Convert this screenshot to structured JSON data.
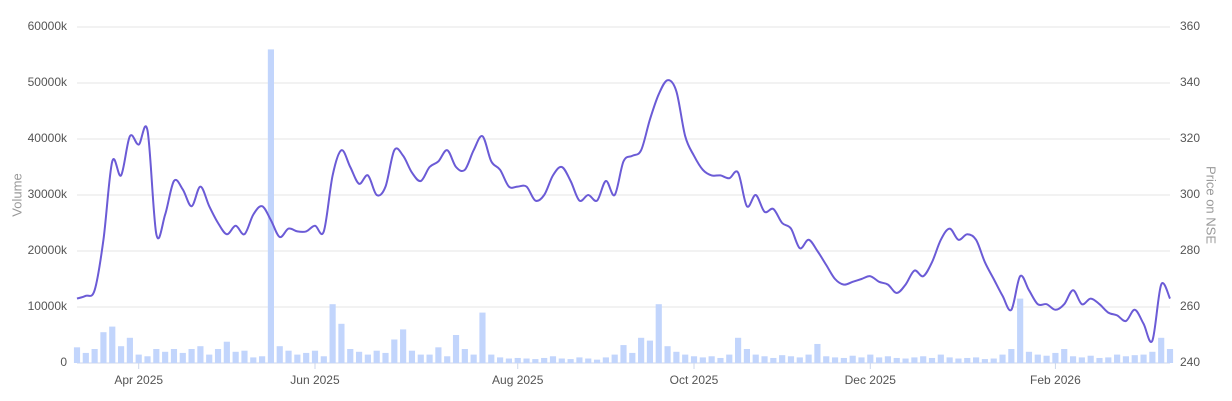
{
  "chart_data": {
    "type": "bar-line",
    "ylabel": "Volume",
    "y2label": "Price on NSE",
    "categories": [
      null,
      null,
      null,
      null,
      null,
      null,
      null,
      "Apr 2025",
      null,
      null,
      null,
      null,
      null,
      null,
      null,
      null,
      null,
      null,
      null,
      null,
      null,
      null,
      null,
      null,
      null,
      null,
      null,
      "Jun 2025",
      null,
      null,
      null,
      null,
      null,
      null,
      null,
      null,
      null,
      null,
      null,
      null,
      null,
      null,
      null,
      null,
      null,
      null,
      null,
      null,
      null,
      null,
      "Aug 2025",
      null,
      null,
      null,
      null,
      null,
      null,
      null,
      null,
      null,
      null,
      null,
      null,
      null,
      null,
      null,
      null,
      null,
      null,
      null,
      "Oct 2025",
      null,
      null,
      null,
      null,
      null,
      null,
      null,
      null,
      null,
      null,
      null,
      null,
      null,
      null,
      null,
      null,
      null,
      null,
      null,
      "Dec 2025",
      null,
      null,
      null,
      null,
      null,
      null,
      null,
      null,
      null,
      null,
      null,
      null,
      null,
      null,
      null,
      null,
      null,
      null,
      null,
      null,
      "Feb 2026",
      null,
      null,
      null,
      null,
      null,
      null,
      null,
      null,
      null,
      null,
      null,
      null,
      null
    ],
    "series": [
      {
        "type": "bar",
        "color": "#c2d5fc",
        "values": [
          2800,
          1800,
          2500,
          5500,
          6500,
          3000,
          4500,
          1500,
          1200,
          2500,
          2000,
          2500,
          1800,
          2500,
          3000,
          1500,
          2500,
          3800,
          2000,
          2200,
          1000,
          1200,
          56000,
          3000,
          2200,
          1500,
          1800,
          2200,
          1200,
          10500,
          7000,
          2500,
          2000,
          1500,
          2200,
          1800,
          4200,
          6000,
          2200,
          1500,
          1500,
          2800,
          1200,
          5000,
          2500,
          1500,
          9000,
          1500,
          1000,
          800,
          900,
          800,
          700,
          900,
          1200,
          800,
          700,
          1000,
          800,
          600,
          1000,
          1500,
          3200,
          1800,
          4500,
          4000,
          10500,
          3000,
          2000,
          1500,
          1200,
          1000,
          1200,
          900,
          1500,
          4500,
          2500,
          1500,
          1200,
          900,
          1400,
          1200,
          1000,
          1500,
          3400,
          1200,
          1000,
          900,
          1300,
          1000,
          1500,
          1000,
          1200,
          900,
          800,
          1000,
          1200,
          900,
          1500,
          1000,
          800,
          900,
          1000,
          700,
          800,
          1500,
          2500,
          11500,
          2000,
          1500,
          1300,
          1800,
          2500,
          1200,
          1000,
          1300,
          900,
          1000,
          1500,
          1200,
          1400,
          1500,
          2000,
          4500,
          2500
        ]
      },
      {
        "type": "line",
        "axis": "y2",
        "color": "#6b5bd6",
        "values": [
          263,
          264,
          266,
          284,
          312,
          307,
          321,
          318,
          323,
          286,
          293,
          305,
          302,
          296,
          303,
          296,
          290,
          286,
          289,
          286,
          293,
          296,
          291,
          285,
          288,
          287,
          287,
          289,
          287,
          307,
          316,
          310,
          304,
          307,
          300,
          303,
          316,
          314,
          308,
          305,
          310,
          312,
          316,
          310,
          309,
          316,
          321,
          312,
          309,
          303,
          303,
          303,
          298,
          300,
          307,
          310,
          305,
          298,
          300,
          298,
          305,
          300,
          312,
          314,
          316,
          327,
          336,
          341,
          337,
          321,
          314,
          309,
          307,
          307,
          306,
          308,
          296,
          300,
          294,
          295,
          290,
          288,
          281,
          284,
          280,
          275,
          270,
          268,
          269,
          270,
          271,
          269,
          268,
          265,
          268,
          273,
          271,
          276,
          284,
          288,
          284,
          286,
          284,
          276,
          270,
          264,
          259,
          271,
          266,
          261,
          261,
          259,
          261,
          266,
          261,
          263,
          261,
          258,
          257,
          255,
          259,
          254,
          248,
          268,
          263
        ]
      }
    ],
    "ylim": [
      0,
      60000
    ],
    "yticks": [
      0,
      {
        "value": 10000,
        "label": "10000k"
      },
      {
        "value": 20000,
        "label": "20000k"
      },
      {
        "value": 30000,
        "label": "30000k"
      },
      {
        "value": 40000,
        "label": "40000k"
      },
      {
        "value": 50000,
        "label": "50000k"
      },
      {
        "value": 60000,
        "label": "60000k"
      }
    ],
    "y2lim": [
      240,
      360
    ],
    "y2ticks": [
      240,
      260,
      280,
      300,
      320,
      340,
      360
    ],
    "grid": true
  }
}
